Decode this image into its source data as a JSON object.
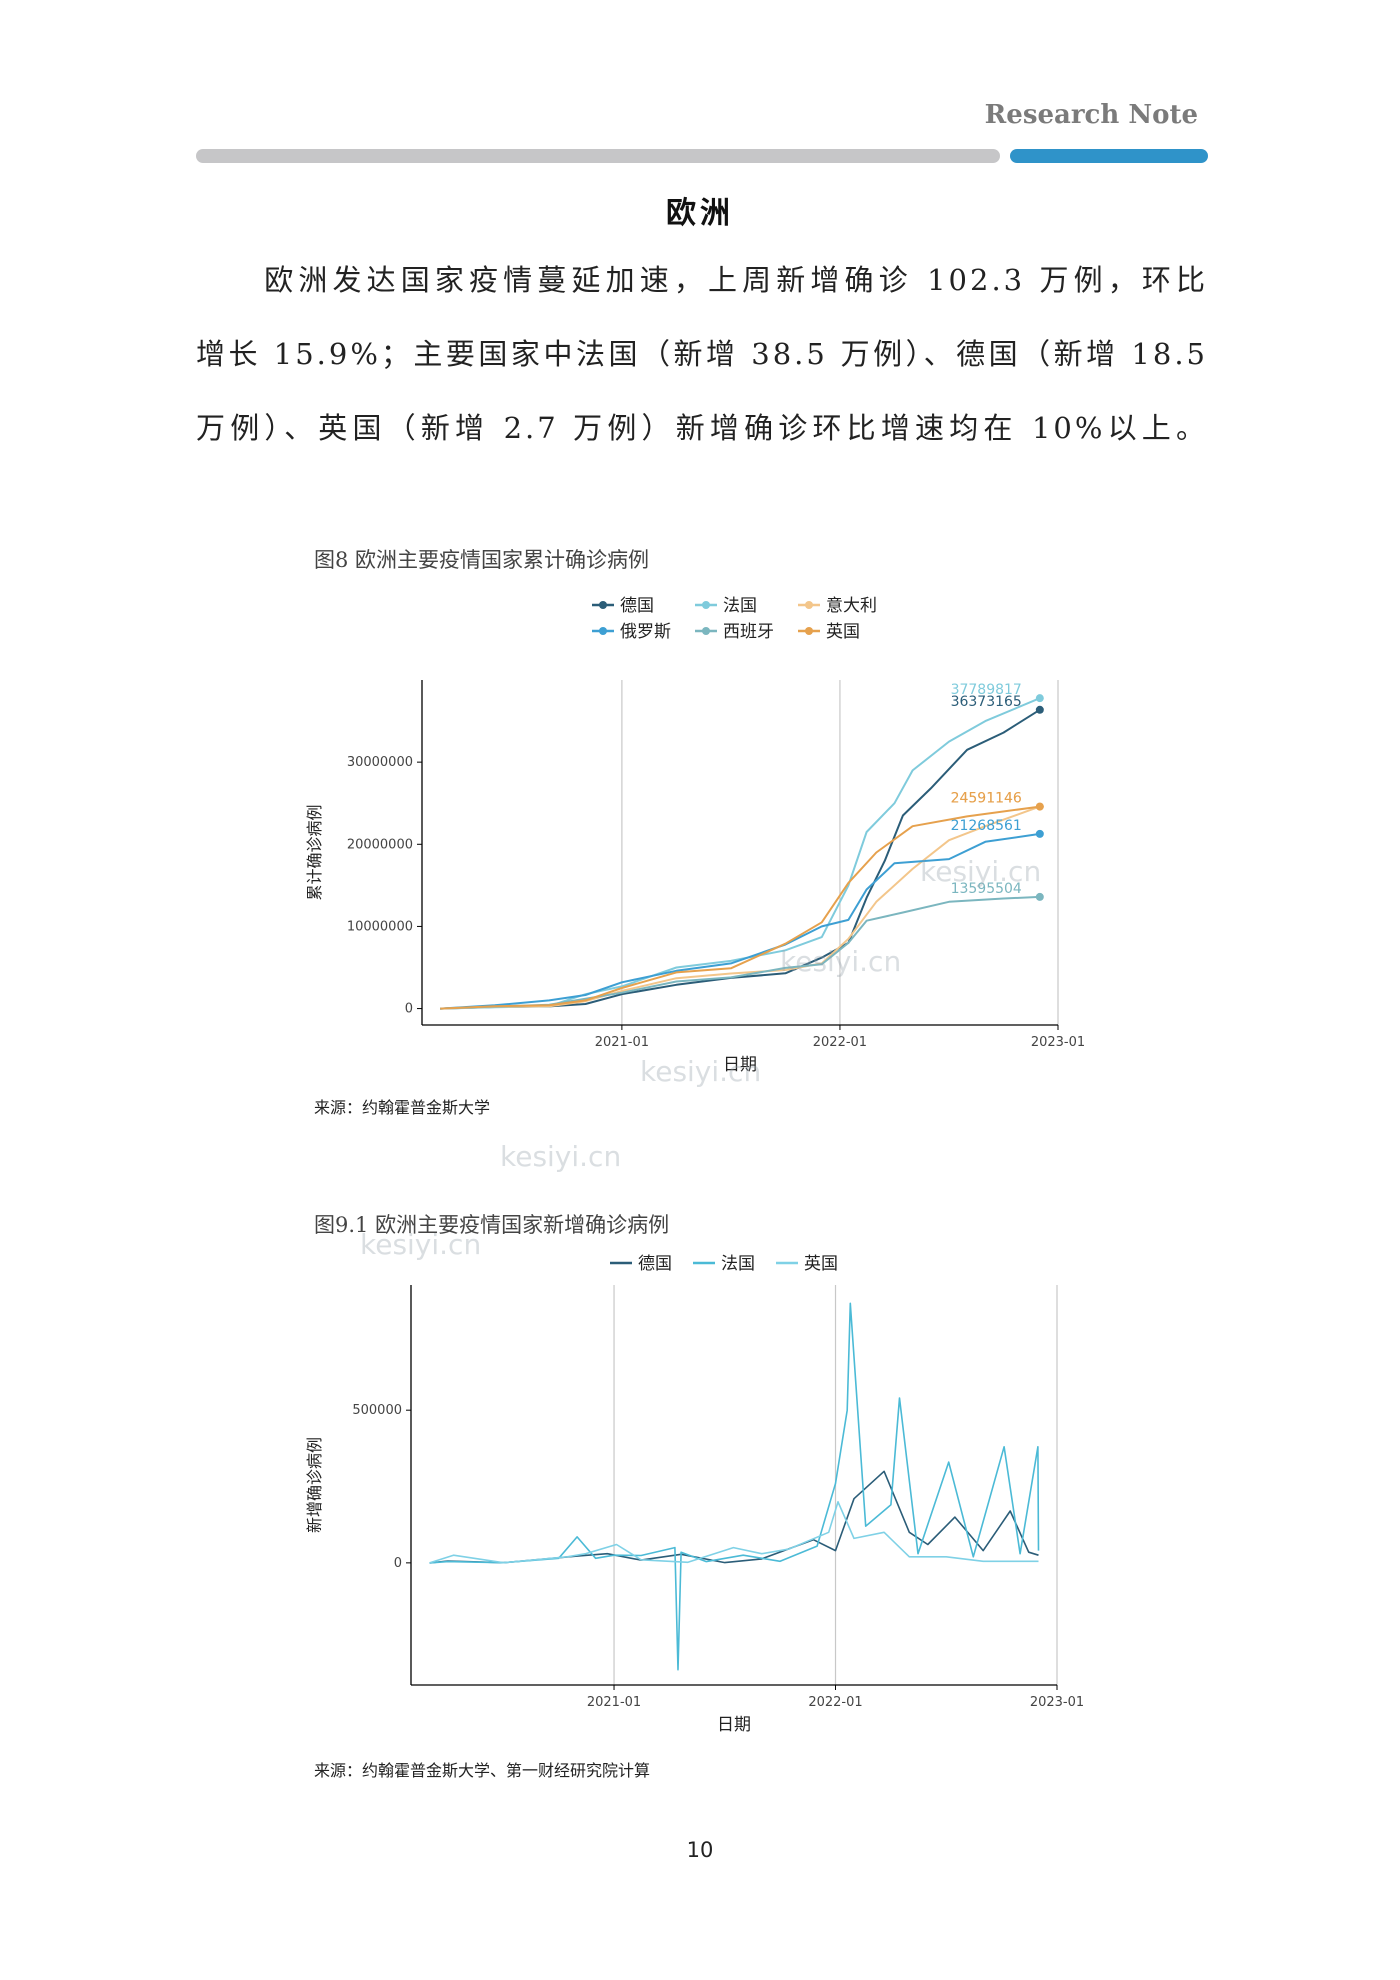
{
  "header": {
    "label": "Research Note"
  },
  "section": {
    "title": "欧洲",
    "paragraph_lines": [
      "　　欧洲发达国家疫情蔓延加速，上周新增确诊 102.3 万例，环比",
      "增长 15.9%；主要国家中法国（新增 38.5 万例）、德国（新增 18.5",
      "万例）、英国（新增 2.7 万例）新增确诊环比增速均在 10%以上。"
    ]
  },
  "colors": {
    "germany": "#2b5d78",
    "france": "#7fcbdc",
    "italy": "#f3c68b",
    "russia": "#3d9fd3",
    "spain": "#7bb6bf",
    "uk": "#e6a14d",
    "new_germany": "#2b5d78",
    "new_france": "#4bbad6",
    "new_uk": "#7fd1e6",
    "grid": "#c8c8c8",
    "axis": "#000000"
  },
  "figure1": {
    "title": "图8 欧洲主要疫情国家累计确诊病例",
    "source": "来源：约翰霍普金斯大学",
    "chart_data": {
      "type": "line",
      "xlabel": "日期",
      "ylabel": "累计确诊病例",
      "x_ticks": [
        "2021-01",
        "2022-01",
        "2023-01"
      ],
      "y_ticks": [
        0,
        10000000,
        20000000,
        30000000
      ],
      "y_tick_labels": [
        "0",
        "10000000",
        "20000000",
        "30000000"
      ],
      "xlim": [
        "2020-02",
        "2023-01"
      ],
      "ylim": [
        -2000000,
        40000000
      ],
      "grid": "vertical only",
      "legend_position": "top",
      "series": [
        {
          "name": "德国",
          "color_key": "germany",
          "end_label": "36373165",
          "points": [
            [
              "2020-03-01",
              0
            ],
            [
              "2020-06-01",
              190000
            ],
            [
              "2020-09-01",
              260000
            ],
            [
              "2020-11-01",
              560000
            ],
            [
              "2021-01-01",
              1750000
            ],
            [
              "2021-04-01",
              2900000
            ],
            [
              "2021-07-01",
              3740000
            ],
            [
              "2021-10-01",
              4300000
            ],
            [
              "2021-12-01",
              6200000
            ],
            [
              "2022-01-15",
              8000000
            ],
            [
              "2022-02-15",
              13500000
            ],
            [
              "2022-03-15",
              18000000
            ],
            [
              "2022-04-15",
              23500000
            ],
            [
              "2022-06-01",
              26800000
            ],
            [
              "2022-08-01",
              31500000
            ],
            [
              "2022-10-01",
              33600000
            ],
            [
              "2022-12-01",
              36373165
            ]
          ]
        },
        {
          "name": "法国",
          "color_key": "france",
          "end_label": "37789817",
          "points": [
            [
              "2020-03-01",
              0
            ],
            [
              "2020-06-01",
              160000
            ],
            [
              "2020-09-01",
              300000
            ],
            [
              "2020-11-01",
              1750000
            ],
            [
              "2021-01-01",
              2700000
            ],
            [
              "2021-04-01",
              5000000
            ],
            [
              "2021-07-01",
              5800000
            ],
            [
              "2021-10-01",
              7100000
            ],
            [
              "2021-12-01",
              8700000
            ],
            [
              "2022-01-15",
              15000000
            ],
            [
              "2022-02-15",
              21500000
            ],
            [
              "2022-04-01",
              25000000
            ],
            [
              "2022-05-01",
              29000000
            ],
            [
              "2022-07-01",
              32500000
            ],
            [
              "2022-09-01",
              35000000
            ],
            [
              "2022-12-01",
              37789817
            ]
          ]
        },
        {
          "name": "意大利",
          "color_key": "italy",
          "end_label": "24591146",
          "points": [
            [
              "2020-03-01",
              0
            ],
            [
              "2020-06-01",
              230000
            ],
            [
              "2020-09-01",
              290000
            ],
            [
              "2020-11-01",
              900000
            ],
            [
              "2021-01-01",
              2150000
            ],
            [
              "2021-04-01",
              3700000
            ],
            [
              "2021-07-01",
              4270000
            ],
            [
              "2021-10-01",
              4700000
            ],
            [
              "2021-12-01",
              5500000
            ],
            [
              "2022-01-15",
              8500000
            ],
            [
              "2022-03-01",
              13000000
            ],
            [
              "2022-05-01",
              17000000
            ],
            [
              "2022-07-01",
              20500000
            ],
            [
              "2022-09-01",
              22200000
            ],
            [
              "2022-12-01",
              24591146
            ]
          ]
        },
        {
          "name": "俄罗斯",
          "color_key": "russia",
          "end_label": "21268561",
          "points": [
            [
              "2020-03-01",
              0
            ],
            [
              "2020-06-01",
              400000
            ],
            [
              "2020-09-01",
              1000000
            ],
            [
              "2020-11-01",
              1650000
            ],
            [
              "2021-01-01",
              3200000
            ],
            [
              "2021-04-01",
              4600000
            ],
            [
              "2021-07-01",
              5500000
            ],
            [
              "2021-10-01",
              7800000
            ],
            [
              "2021-12-01",
              10000000
            ],
            [
              "2022-01-15",
              10800000
            ],
            [
              "2022-02-15",
              14500000
            ],
            [
              "2022-04-01",
              17700000
            ],
            [
              "2022-07-01",
              18200000
            ],
            [
              "2022-09-01",
              20300000
            ],
            [
              "2022-12-01",
              21268561
            ]
          ]
        },
        {
          "name": "西班牙",
          "color_key": "spain",
          "end_label": "13595504",
          "points": [
            [
              "2020-03-01",
              0
            ],
            [
              "2020-06-01",
              240000
            ],
            [
              "2020-09-01",
              470000
            ],
            [
              "2020-11-01",
              1200000
            ],
            [
              "2021-01-01",
              1930000
            ],
            [
              "2021-04-01",
              3300000
            ],
            [
              "2021-07-01",
              3800000
            ],
            [
              "2021-10-01",
              4950000
            ],
            [
              "2021-12-01",
              5400000
            ],
            [
              "2022-01-15",
              8000000
            ],
            [
              "2022-02-15",
              10700000
            ],
            [
              "2022-04-15",
              11700000
            ],
            [
              "2022-07-01",
              13000000
            ],
            [
              "2022-10-01",
              13400000
            ],
            [
              "2022-12-01",
              13595504
            ]
          ]
        },
        {
          "name": "英国",
          "color_key": "uk",
          "end_label": "24591146",
          "points": [
            [
              "2020-03-01",
              0
            ],
            [
              "2020-06-01",
              280000
            ],
            [
              "2020-09-01",
              400000
            ],
            [
              "2020-11-01",
              1000000
            ],
            [
              "2021-01-01",
              2500000
            ],
            [
              "2021-04-01",
              4400000
            ],
            [
              "2021-07-01",
              4900000
            ],
            [
              "2021-10-01",
              7900000
            ],
            [
              "2021-12-01",
              10500000
            ],
            [
              "2022-01-15",
              15300000
            ],
            [
              "2022-03-01",
              19000000
            ],
            [
              "2022-05-01",
              22200000
            ],
            [
              "2022-08-01",
              23400000
            ],
            [
              "2022-12-01",
              24591146
            ]
          ]
        }
      ]
    }
  },
  "figure2": {
    "title": "图9.1 欧洲主要疫情国家新增确诊病例",
    "source": "来源：约翰霍普金斯大学、第一财经研究院计算",
    "chart_data": {
      "type": "line",
      "xlabel": "日期",
      "ylabel": "新增确诊病例",
      "x_ticks": [
        "2021-01",
        "2022-01",
        "2023-01"
      ],
      "y_ticks": [
        0,
        500000
      ],
      "y_tick_labels": [
        "0",
        "500000"
      ],
      "xlim": [
        "2020-02",
        "2023-01"
      ],
      "ylim": [
        -400000,
        910000
      ],
      "grid": "vertical only",
      "legend_position": "top",
      "series": [
        {
          "name": "德国",
          "color_key": "new_germany",
          "points": [
            [
              "2020-03-01",
              0
            ],
            [
              "2020-04-01",
              6000
            ],
            [
              "2020-07-01",
              500
            ],
            [
              "2020-11-01",
              22000
            ],
            [
              "2020-12-20",
              30000
            ],
            [
              "2021-02-15",
              9000
            ],
            [
              "2021-04-20",
              28000
            ],
            [
              "2021-07-01",
              800
            ],
            [
              "2021-09-01",
              13000
            ],
            [
              "2021-11-25",
              76000
            ],
            [
              "2022-01-01",
              40000
            ],
            [
              "2022-02-01",
              210000
            ],
            [
              "2022-03-20",
              300000
            ],
            [
              "2022-05-01",
              100000
            ],
            [
              "2022-06-01",
              60000
            ],
            [
              "2022-07-15",
              150000
            ],
            [
              "2022-09-01",
              40000
            ],
            [
              "2022-10-15",
              170000
            ],
            [
              "2022-11-15",
              35000
            ],
            [
              "2022-12-01",
              25000
            ]
          ]
        },
        {
          "name": "法国",
          "color_key": "new_france",
          "points": [
            [
              "2020-03-01",
              0
            ],
            [
              "2020-04-01",
              4000
            ],
            [
              "2020-07-01",
              600
            ],
            [
              "2020-10-01",
              15000
            ],
            [
              "2020-11-01",
              85000
            ],
            [
              "2020-12-01",
              15000
            ],
            [
              "2021-01-01",
              25000
            ],
            [
              "2021-02-15",
              24000
            ],
            [
              "2021-04-10",
              50000
            ],
            [
              "2021-04-15",
              -350000
            ],
            [
              "2021-04-20",
              35000
            ],
            [
              "2021-06-01",
              4000
            ],
            [
              "2021-08-01",
              25000
            ],
            [
              "2021-10-01",
              5000
            ],
            [
              "2021-12-01",
              55000
            ],
            [
              "2022-01-01",
              260000
            ],
            [
              "2022-01-20",
              500000
            ],
            [
              "2022-01-25",
              850000
            ],
            [
              "2022-02-20",
              120000
            ],
            [
              "2022-04-01",
              190000
            ],
            [
              "2022-04-15",
              540000
            ],
            [
              "2022-05-15",
              30000
            ],
            [
              "2022-07-05",
              330000
            ],
            [
              "2022-08-15",
              20000
            ],
            [
              "2022-10-05",
              380000
            ],
            [
              "2022-11-01",
              30000
            ],
            [
              "2022-11-30",
              380000
            ],
            [
              "2022-12-01",
              40000
            ]
          ]
        },
        {
          "name": "英国",
          "color_key": "new_uk",
          "points": [
            [
              "2020-03-01",
              0
            ],
            [
              "2020-04-10",
              25000
            ],
            [
              "2020-07-01",
              600
            ],
            [
              "2020-10-15",
              20000
            ],
            [
              "2020-11-15",
              30000
            ],
            [
              "2021-01-05",
              60000
            ],
            [
              "2021-02-15",
              10000
            ],
            [
              "2021-05-01",
              2000
            ],
            [
              "2021-07-15",
              50000
            ],
            [
              "2021-09-01",
              30000
            ],
            [
              "2021-10-15",
              45000
            ],
            [
              "2021-12-20",
              100000
            ],
            [
              "2022-01-05",
              200000
            ],
            [
              "2022-02-01",
              80000
            ],
            [
              "2022-03-20",
              100000
            ],
            [
              "2022-05-01",
              20000
            ],
            [
              "2022-07-01",
              20000
            ],
            [
              "2022-09-01",
              5000
            ],
            [
              "2022-12-01",
              5000
            ]
          ]
        }
      ]
    }
  },
  "watermark": {
    "text": "kesiyi.cn"
  },
  "page": {
    "number": "10"
  }
}
